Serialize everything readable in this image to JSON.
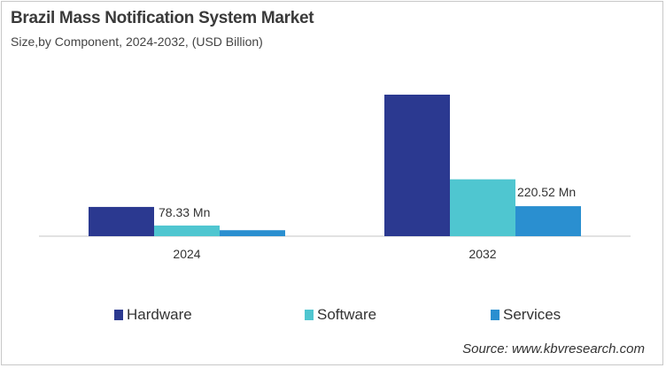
{
  "chart_data": {
    "type": "bar",
    "title": "Brazil Mass Notification System Market",
    "subtitle": "Size,by Component, 2024-2032, (USD Billion)",
    "categories": [
      "2024",
      "2032"
    ],
    "series": [
      {
        "name": "Hardware",
        "values": [
          215,
          1040
        ],
        "color": "#2b3990"
      },
      {
        "name": "Software",
        "values": [
          78.33,
          418
        ],
        "color": "#4fc6d0"
      },
      {
        "name": "Services",
        "values": [
          44,
          220.52
        ],
        "color": "#2a8fd0"
      }
    ],
    "data_labels": [
      {
        "series": "Software",
        "category": "2024",
        "text": "78.33 Mn"
      },
      {
        "series": "Services",
        "category": "2032",
        "text": "220.52 Mn"
      }
    ],
    "ylim": [
      0,
      1040
    ],
    "grid": false,
    "legend": "bottom",
    "source": "Source: www.kbvresearch.com"
  }
}
